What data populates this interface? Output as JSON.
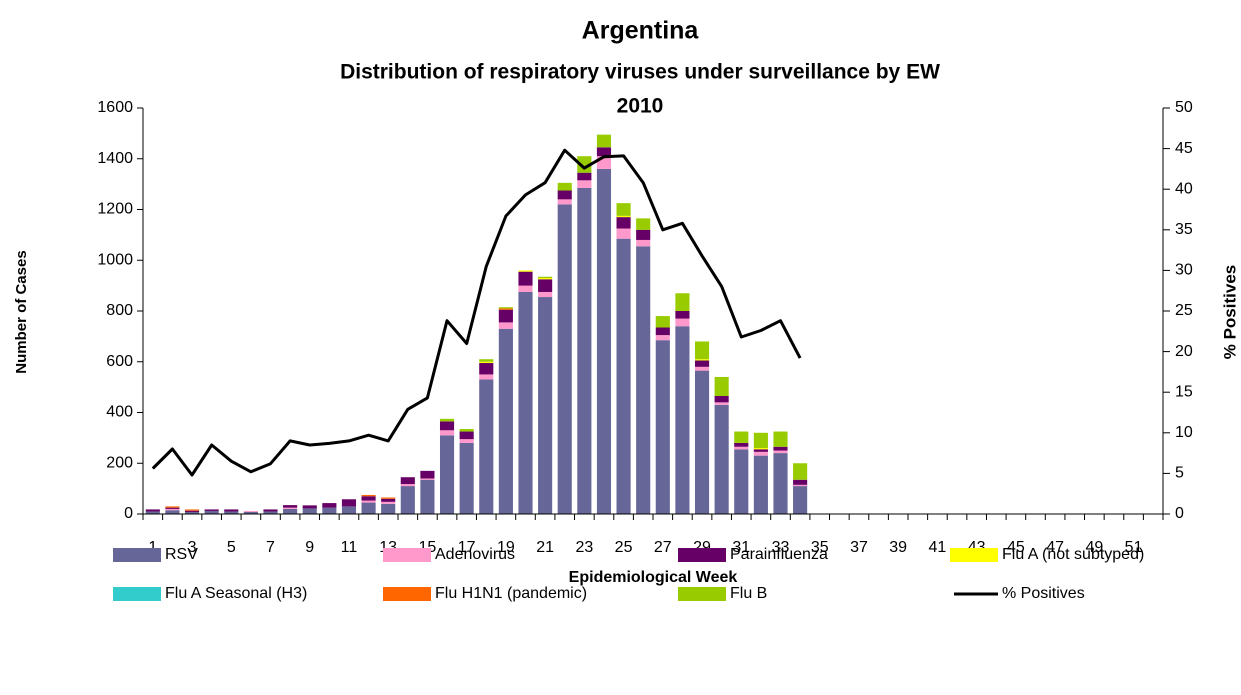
{
  "chart_data": {
    "type": "bar",
    "stacked": true,
    "title": "Argentina",
    "subtitle": "Distribution of respiratory viruses under surveillance by EW",
    "subtitle2": "2010",
    "x_label": "Epidemiological Week",
    "y_label": "Number of Cases",
    "y2_label": "% Positives",
    "categories": [
      1,
      null,
      3,
      null,
      5,
      null,
      7,
      null,
      9,
      null,
      11,
      null,
      13,
      null,
      15,
      null,
      17,
      null,
      19,
      null,
      21,
      null,
      23,
      null,
      25,
      null,
      27,
      null,
      29,
      null,
      31,
      null,
      33,
      null,
      35,
      null,
      37,
      null,
      39,
      null,
      41,
      null,
      43,
      null,
      45,
      null,
      47,
      null,
      49,
      null,
      51,
      null
    ],
    "ylim": [
      0,
      1600
    ],
    "yticks": [
      0,
      200,
      400,
      600,
      800,
      1000,
      1200,
      1400,
      1600
    ],
    "y2lim": [
      0,
      50
    ],
    "y2ticks": [
      0,
      5,
      10,
      15,
      20,
      25,
      30,
      35,
      40,
      45,
      50
    ],
    "legend": "bottom",
    "series": [
      {
        "name": "RSV",
        "color": "#666699",
        "values": [
          10,
          15,
          8,
          12,
          10,
          8,
          10,
          20,
          22,
          25,
          30,
          45,
          40,
          110,
          135,
          310,
          280,
          530,
          730,
          875,
          855,
          1220,
          1285,
          1360,
          1085,
          1055,
          685,
          740,
          565,
          430,
          255,
          230,
          240,
          110,
          null,
          null,
          null,
          null,
          null,
          null,
          null,
          null,
          null,
          null,
          null,
          null,
          null,
          null,
          null,
          null,
          null,
          null
        ]
      },
      {
        "name": "Adenovirus",
        "color": "#ff99cc",
        "values": [
          0,
          5,
          0,
          0,
          0,
          4,
          0,
          5,
          0,
          0,
          0,
          8,
          8,
          8,
          5,
          20,
          15,
          20,
          25,
          25,
          20,
          20,
          30,
          50,
          40,
          25,
          20,
          30,
          15,
          10,
          10,
          15,
          10,
          5,
          null,
          null,
          null,
          null,
          null,
          null,
          null,
          null,
          null,
          null,
          null,
          null,
          null,
          null,
          null,
          null,
          null,
          null
        ]
      },
      {
        "name": "Parainfluenza",
        "color": "#660066",
        "values": [
          8,
          5,
          5,
          6,
          8,
          0,
          8,
          10,
          12,
          18,
          28,
          17,
          12,
          27,
          30,
          35,
          30,
          45,
          50,
          55,
          50,
          35,
          30,
          35,
          45,
          40,
          30,
          30,
          25,
          25,
          15,
          10,
          15,
          20,
          null,
          null,
          null,
          null,
          null,
          null,
          null,
          null,
          null,
          null,
          null,
          null,
          null,
          null,
          null,
          null,
          null,
          null
        ]
      },
      {
        "name": "Flu A (not subtyped)",
        "color": "#ffff00",
        "values": [
          0,
          0,
          0,
          0,
          0,
          0,
          0,
          0,
          0,
          0,
          0,
          0,
          0,
          0,
          0,
          0,
          0,
          5,
          0,
          5,
          5,
          0,
          0,
          0,
          5,
          0,
          0,
          0,
          5,
          0,
          0,
          5,
          0,
          0,
          null,
          null,
          null,
          null,
          null,
          null,
          null,
          null,
          null,
          null,
          null,
          null,
          null,
          null,
          null,
          null,
          null,
          null
        ]
      },
      {
        "name": "Flu A Seasonal (H3)",
        "color": "#33cccc",
        "values": [
          0,
          0,
          0,
          0,
          0,
          0,
          0,
          0,
          0,
          0,
          0,
          0,
          0,
          0,
          0,
          0,
          0,
          0,
          0,
          0,
          0,
          0,
          0,
          0,
          0,
          0,
          0,
          0,
          0,
          0,
          0,
          0,
          0,
          0,
          null,
          null,
          null,
          null,
          null,
          null,
          null,
          null,
          null,
          null,
          null,
          null,
          null,
          null,
          null,
          null,
          null,
          null
        ]
      },
      {
        "name": "Flu H1N1 (pandemic)",
        "color": "#ff6600",
        "values": [
          0,
          5,
          5,
          0,
          0,
          0,
          0,
          0,
          0,
          0,
          0,
          5,
          5,
          0,
          0,
          0,
          0,
          0,
          5,
          0,
          0,
          0,
          0,
          0,
          0,
          0,
          0,
          0,
          0,
          0,
          0,
          0,
          0,
          0,
          null,
          null,
          null,
          null,
          null,
          null,
          null,
          null,
          null,
          null,
          null,
          null,
          null,
          null,
          null,
          null,
          null,
          null
        ]
      },
      {
        "name": "Flu B",
        "color": "#99cc00",
        "values": [
          0,
          0,
          0,
          0,
          0,
          0,
          0,
          0,
          0,
          0,
          0,
          0,
          0,
          0,
          0,
          10,
          10,
          10,
          5,
          0,
          5,
          30,
          65,
          50,
          50,
          45,
          45,
          70,
          70,
          75,
          45,
          60,
          60,
          65,
          null,
          null,
          null,
          null,
          null,
          null,
          null,
          null,
          null,
          null,
          null,
          null,
          null,
          null,
          null,
          null,
          null,
          null
        ]
      },
      {
        "name": "% Positives",
        "color": "#000000",
        "type": "line",
        "axis": "y2",
        "values": [
          5.6,
          8,
          4.8,
          8.5,
          6.5,
          5.2,
          6.2,
          9,
          8.5,
          8.7,
          9,
          9.7,
          9,
          12.9,
          14.3,
          23.8,
          21,
          30.5,
          36.7,
          39.3,
          40.8,
          44.8,
          42.6,
          44,
          44.1,
          40.8,
          35,
          35.8,
          31.8,
          28,
          21.8,
          22.6,
          23.8,
          19.2,
          null,
          null,
          null,
          null,
          null,
          null,
          null,
          null,
          null,
          null,
          null,
          null,
          null,
          null,
          null,
          null,
          null,
          null
        ]
      }
    ]
  }
}
